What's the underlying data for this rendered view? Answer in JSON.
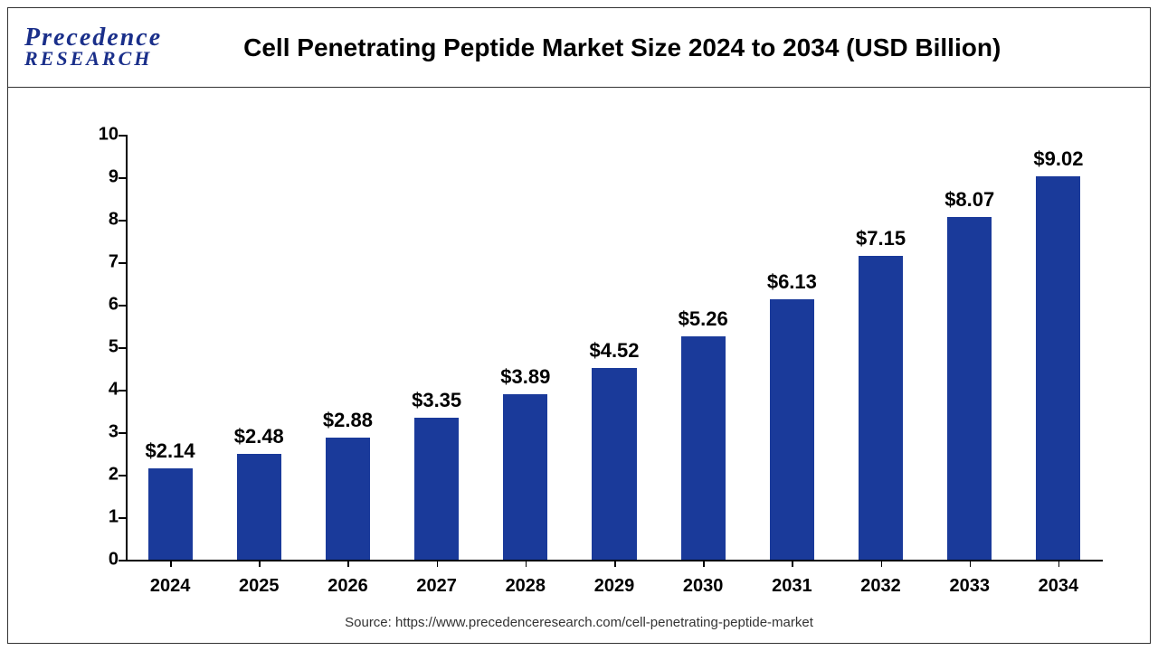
{
  "logo": {
    "line1": "Precedence",
    "line2": "RESEARCH",
    "color": "#1a2f8a"
  },
  "title": "Cell Penetrating Peptide Market Size 2024 to 2034 (USD Billion)",
  "chart": {
    "type": "bar",
    "categories": [
      "2024",
      "2025",
      "2026",
      "2027",
      "2028",
      "2029",
      "2030",
      "2031",
      "2032",
      "2033",
      "2034"
    ],
    "values": [
      2.14,
      2.48,
      2.88,
      3.35,
      3.89,
      4.52,
      5.26,
      6.13,
      7.15,
      8.07,
      9.02
    ],
    "value_labels": [
      "$2.14",
      "$2.48",
      "$2.88",
      "$3.35",
      "$3.89",
      "$4.52",
      "$5.26",
      "$6.13",
      "$7.15",
      "$8.07",
      "$9.02"
    ],
    "bar_color": "#1a3a9a",
    "background_color": "#ffffff",
    "ylim": [
      0,
      10
    ],
    "ytick_step": 1,
    "yticks": [
      "0",
      "1",
      "2",
      "3",
      "4",
      "5",
      "6",
      "7",
      "8",
      "9",
      "10"
    ],
    "bar_width_ratio": 0.5,
    "axis_color": "#000000",
    "title_fontsize": 28,
    "label_fontsize": 20,
    "value_label_fontsize": 22,
    "font_weight_labels": "bold"
  },
  "source": "Source: https://www.precedenceresearch.com/cell-penetrating-peptide-market"
}
